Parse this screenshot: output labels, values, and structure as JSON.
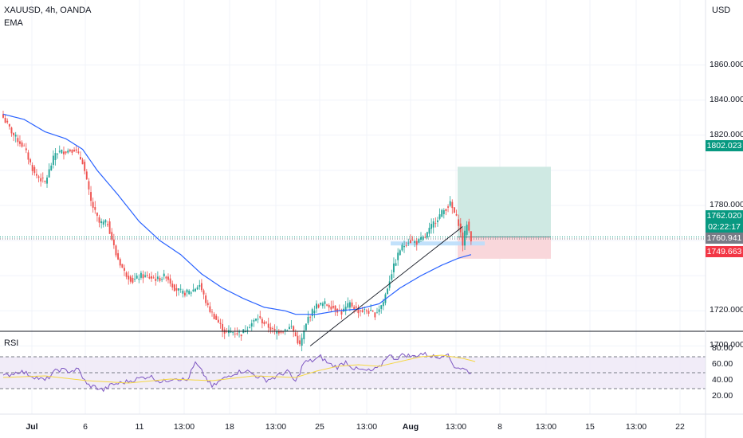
{
  "header": {
    "ticker": "XAUUSD, 4h, OANDA",
    "indicator": "EMA",
    "currency": "USD"
  },
  "rsi_panel": {
    "label": "RSI",
    "ticks": [
      "80.00",
      "60.00",
      "40.00",
      "20.00"
    ]
  },
  "price_axis": {
    "ticks": [
      "1860.000",
      "1840.000",
      "1820.000",
      "1780.000",
      "1720.000",
      "1700.000"
    ]
  },
  "badges": {
    "target": "1802.023",
    "entry": "1762.020",
    "countdown": "02:22:17",
    "last": "1760.941",
    "stop": "1749.663"
  },
  "colors": {
    "up": "#26a69a",
    "down": "#ef5350",
    "ema": "#2962ff",
    "rsi": "#7e57c2",
    "rsi_ma": "#f5d743",
    "target_zone": "#cfe9e3",
    "stop_zone": "#f9d7db"
  },
  "chart_data": {
    "type": "candlestick",
    "series_anchors": {
      "close": [
        [
          0,
          1830
        ],
        [
          5,
          1820
        ],
        [
          10,
          1813
        ],
        [
          15,
          1798
        ],
        [
          20,
          1793
        ],
        [
          25,
          1810
        ],
        [
          30,
          1811
        ],
        [
          34,
          1812
        ],
        [
          38,
          1805
        ],
        [
          42,
          1782
        ],
        [
          46,
          1770
        ],
        [
          50,
          1770
        ],
        [
          54,
          1752
        ],
        [
          58,
          1742
        ],
        [
          62,
          1737
        ],
        [
          66,
          1740
        ],
        [
          70,
          1739
        ],
        [
          74,
          1738
        ],
        [
          78,
          1740
        ],
        [
          82,
          1733
        ],
        [
          86,
          1730
        ],
        [
          90,
          1731
        ],
        [
          94,
          1735
        ],
        [
          98,
          1722
        ],
        [
          102,
          1715
        ],
        [
          106,
          1708
        ],
        [
          110,
          1708
        ],
        [
          114,
          1707
        ],
        [
          118,
          1712
        ],
        [
          122,
          1716
        ],
        [
          126,
          1712
        ],
        [
          130,
          1708
        ],
        [
          134,
          1709
        ],
        [
          138,
          1711
        ],
        [
          142,
          1700
        ],
        [
          146,
          1716
        ],
        [
          150,
          1723
        ],
        [
          154,
          1724
        ],
        [
          158,
          1722
        ],
        [
          162,
          1719
        ],
        [
          166,
          1724
        ],
        [
          170,
          1720
        ],
        [
          174,
          1720
        ],
        [
          178,
          1718
        ],
        [
          182,
          1725
        ],
        [
          186,
          1742
        ],
        [
          190,
          1755
        ],
        [
          194,
          1760
        ],
        [
          198,
          1759
        ],
        [
          202,
          1762
        ],
        [
          206,
          1770
        ],
        [
          210,
          1776
        ],
        [
          214,
          1781
        ],
        [
          218,
          1770
        ],
        [
          220,
          1758
        ],
        [
          222,
          1770
        ],
        [
          224,
          1761
        ]
      ],
      "ema": [
        [
          0,
          1832
        ],
        [
          10,
          1829
        ],
        [
          20,
          1822
        ],
        [
          30,
          1818
        ],
        [
          38,
          1812
        ],
        [
          45,
          1800
        ],
        [
          55,
          1786
        ],
        [
          65,
          1771
        ],
        [
          75,
          1760
        ],
        [
          85,
          1752
        ],
        [
          95,
          1741
        ],
        [
          105,
          1733
        ],
        [
          115,
          1727
        ],
        [
          125,
          1722
        ],
        [
          135,
          1720
        ],
        [
          140,
          1718
        ],
        [
          150,
          1718
        ],
        [
          160,
          1720
        ],
        [
          170,
          1721
        ],
        [
          180,
          1724
        ],
        [
          190,
          1733
        ],
        [
          200,
          1740
        ],
        [
          210,
          1746
        ],
        [
          218,
          1750
        ],
        [
          224,
          1752
        ]
      ],
      "rsi": [
        [
          0,
          45
        ],
        [
          8,
          52
        ],
        [
          14,
          46
        ],
        [
          20,
          40
        ],
        [
          26,
          54
        ],
        [
          32,
          52
        ],
        [
          36,
          54
        ],
        [
          40,
          35
        ],
        [
          44,
          32
        ],
        [
          48,
          28
        ],
        [
          52,
          35
        ],
        [
          58,
          38
        ],
        [
          64,
          42
        ],
        [
          70,
          46
        ],
        [
          76,
          38
        ],
        [
          82,
          44
        ],
        [
          88,
          40
        ],
        [
          92,
          62
        ],
        [
          96,
          48
        ],
        [
          100,
          32
        ],
        [
          104,
          40
        ],
        [
          110,
          49
        ],
        [
          116,
          53
        ],
        [
          122,
          45
        ],
        [
          126,
          41
        ],
        [
          130,
          44
        ],
        [
          136,
          52
        ],
        [
          140,
          38
        ],
        [
          144,
          63
        ],
        [
          148,
          65
        ],
        [
          152,
          70
        ],
        [
          156,
          61
        ],
        [
          160,
          57
        ],
        [
          164,
          64
        ],
        [
          168,
          55
        ],
        [
          172,
          53
        ],
        [
          176,
          52
        ],
        [
          180,
          56
        ],
        [
          184,
          72
        ],
        [
          188,
          68
        ],
        [
          192,
          73
        ],
        [
          196,
          70
        ],
        [
          200,
          74
        ],
        [
          204,
          72
        ],
        [
          208,
          69
        ],
        [
          212,
          75
        ],
        [
          216,
          58
        ],
        [
          220,
          55
        ],
        [
          224,
          50
        ]
      ],
      "rsi_ma": [
        [
          0,
          44
        ],
        [
          20,
          46
        ],
        [
          40,
          40
        ],
        [
          60,
          37
        ],
        [
          80,
          42
        ],
        [
          100,
          40
        ],
        [
          120,
          46
        ],
        [
          140,
          44
        ],
        [
          150,
          52
        ],
        [
          160,
          58
        ],
        [
          170,
          60
        ],
        [
          180,
          58
        ],
        [
          190,
          64
        ],
        [
          200,
          70
        ],
        [
          210,
          72
        ],
        [
          220,
          68
        ],
        [
          226,
          64
        ]
      ]
    },
    "long_position": {
      "entry": 1762.02,
      "target": 1802.023,
      "stop": 1749.663
    },
    "trendline": {
      "from": {
        "bar": 147,
        "price": 1700
      },
      "to": {
        "bar": 220,
        "price": 1768
      }
    },
    "rsi_levels": [
      70,
      50,
      30
    ],
    "x_tick_labels": [
      "Jul",
      "6",
      "11",
      "13:00",
      "18",
      "13:00",
      "25",
      "13:00",
      "Aug",
      "13:00",
      "8",
      "13:00",
      "15",
      "13:00",
      "22"
    ]
  }
}
